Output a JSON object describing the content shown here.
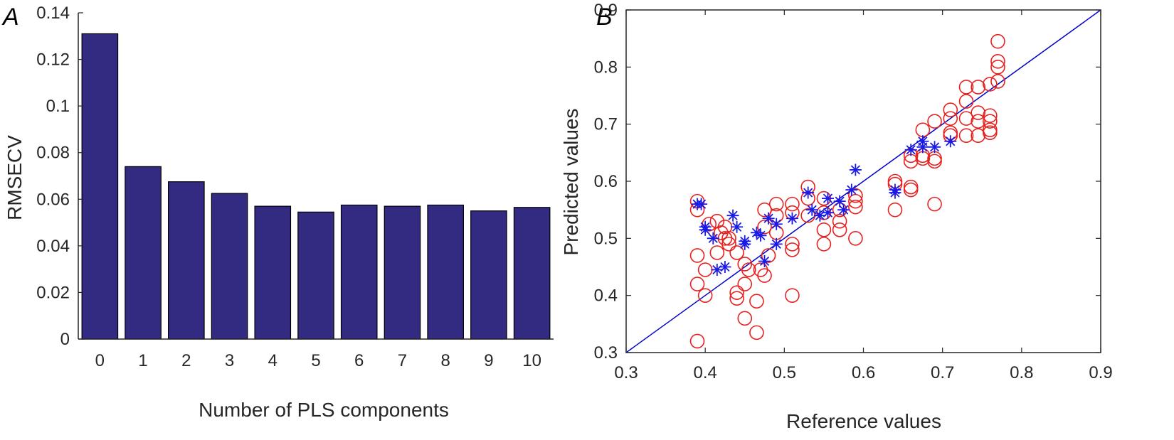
{
  "chart_data": [
    {
      "type": "bar",
      "panel_label": "A",
      "categories": [
        "0",
        "1",
        "2",
        "3",
        "4",
        "5",
        "6",
        "7",
        "8",
        "9",
        "10"
      ],
      "values": [
        0.131,
        0.074,
        0.0675,
        0.0625,
        0.057,
        0.0545,
        0.0575,
        0.057,
        0.0575,
        0.055,
        0.0565
      ],
      "xlabel": "Number of PLS components",
      "ylabel": "RMSECV",
      "ylim": [
        0,
        0.14
      ],
      "yticks": [
        "0",
        "0.02",
        "0.04",
        "0.06",
        "0.08",
        "0.1",
        "0.12",
        "0.14"
      ],
      "bar_color": "#332A82",
      "grid": false
    },
    {
      "type": "scatter",
      "panel_label": "B",
      "xlabel": "Reference values",
      "ylabel": "Predicted values",
      "xlim": [
        0.3,
        0.9
      ],
      "ylim": [
        0.3,
        0.9
      ],
      "xticks": [
        "0.3",
        "0.4",
        "0.5",
        "0.6",
        "0.7",
        "0.8",
        "0.9"
      ],
      "yticks": [
        "0.3",
        "0.4",
        "0.5",
        "0.6",
        "0.7",
        "0.8",
        "0.9"
      ],
      "grid": false,
      "reference_line": {
        "from": [
          0.3,
          0.3
        ],
        "to": [
          0.9,
          0.9
        ],
        "color": "#0000CC"
      },
      "series": [
        {
          "marker": "circle",
          "color": "#E8201E",
          "points": [
            [
              0.39,
              0.565
            ],
            [
              0.39,
              0.55
            ],
            [
              0.39,
              0.47
            ],
            [
              0.39,
              0.42
            ],
            [
              0.39,
              0.32
            ],
            [
              0.4,
              0.445
            ],
            [
              0.4,
              0.4
            ],
            [
              0.405,
              0.525
            ],
            [
              0.415,
              0.475
            ],
            [
              0.415,
              0.53
            ],
            [
              0.42,
              0.51
            ],
            [
              0.425,
              0.5
            ],
            [
              0.425,
              0.52
            ],
            [
              0.43,
              0.5
            ],
            [
              0.43,
              0.49
            ],
            [
              0.44,
              0.475
            ],
            [
              0.44,
              0.405
            ],
            [
              0.44,
              0.395
            ],
            [
              0.45,
              0.42
            ],
            [
              0.45,
              0.455
            ],
            [
              0.45,
              0.36
            ],
            [
              0.455,
              0.445
            ],
            [
              0.465,
              0.335
            ],
            [
              0.465,
              0.39
            ],
            [
              0.47,
              0.445
            ],
            [
              0.475,
              0.435
            ],
            [
              0.475,
              0.52
            ],
            [
              0.475,
              0.55
            ],
            [
              0.48,
              0.47
            ],
            [
              0.49,
              0.56
            ],
            [
              0.49,
              0.54
            ],
            [
              0.49,
              0.51
            ],
            [
              0.51,
              0.56
            ],
            [
              0.51,
              0.545
            ],
            [
              0.51,
              0.49
            ],
            [
              0.51,
              0.48
            ],
            [
              0.51,
              0.4
            ],
            [
              0.53,
              0.59
            ],
            [
              0.53,
              0.57
            ],
            [
              0.53,
              0.54
            ],
            [
              0.55,
              0.57
            ],
            [
              0.55,
              0.545
            ],
            [
              0.55,
              0.515
            ],
            [
              0.55,
              0.49
            ],
            [
              0.57,
              0.55
            ],
            [
              0.57,
              0.53
            ],
            [
              0.57,
              0.515
            ],
            [
              0.59,
              0.575
            ],
            [
              0.59,
              0.565
            ],
            [
              0.59,
              0.555
            ],
            [
              0.59,
              0.5
            ],
            [
              0.64,
              0.6
            ],
            [
              0.64,
              0.595
            ],
            [
              0.64,
              0.55
            ],
            [
              0.66,
              0.645
            ],
            [
              0.66,
              0.635
            ],
            [
              0.66,
              0.59
            ],
            [
              0.66,
              0.585
            ],
            [
              0.675,
              0.69
            ],
            [
              0.675,
              0.645
            ],
            [
              0.675,
              0.64
            ],
            [
              0.69,
              0.705
            ],
            [
              0.69,
              0.64
            ],
            [
              0.69,
              0.635
            ],
            [
              0.69,
              0.56
            ],
            [
              0.71,
              0.725
            ],
            [
              0.71,
              0.71
            ],
            [
              0.71,
              0.685
            ],
            [
              0.71,
              0.68
            ],
            [
              0.73,
              0.765
            ],
            [
              0.73,
              0.74
            ],
            [
              0.73,
              0.71
            ],
            [
              0.73,
              0.68
            ],
            [
              0.745,
              0.765
            ],
            [
              0.745,
              0.72
            ],
            [
              0.745,
              0.705
            ],
            [
              0.745,
              0.68
            ],
            [
              0.76,
              0.77
            ],
            [
              0.76,
              0.715
            ],
            [
              0.76,
              0.705
            ],
            [
              0.76,
              0.69
            ],
            [
              0.76,
              0.685
            ],
            [
              0.77,
              0.845
            ],
            [
              0.77,
              0.81
            ],
            [
              0.77,
              0.8
            ],
            [
              0.77,
              0.775
            ]
          ]
        },
        {
          "marker": "asterisk",
          "color": "#1A1AE6",
          "points": [
            [
              0.39,
              0.56
            ],
            [
              0.395,
              0.56
            ],
            [
              0.4,
              0.52
            ],
            [
              0.4,
              0.515
            ],
            [
              0.41,
              0.5
            ],
            [
              0.415,
              0.445
            ],
            [
              0.425,
              0.45
            ],
            [
              0.435,
              0.54
            ],
            [
              0.44,
              0.52
            ],
            [
              0.45,
              0.49
            ],
            [
              0.45,
              0.495
            ],
            [
              0.465,
              0.51
            ],
            [
              0.47,
              0.505
            ],
            [
              0.475,
              0.46
            ],
            [
              0.48,
              0.535
            ],
            [
              0.49,
              0.49
            ],
            [
              0.49,
              0.525
            ],
            [
              0.51,
              0.535
            ],
            [
              0.53,
              0.58
            ],
            [
              0.535,
              0.55
            ],
            [
              0.545,
              0.54
            ],
            [
              0.555,
              0.545
            ],
            [
              0.555,
              0.57
            ],
            [
              0.57,
              0.565
            ],
            [
              0.575,
              0.55
            ],
            [
              0.585,
              0.585
            ],
            [
              0.59,
              0.62
            ],
            [
              0.64,
              0.58
            ],
            [
              0.64,
              0.585
            ],
            [
              0.66,
              0.655
            ],
            [
              0.675,
              0.66
            ],
            [
              0.675,
              0.67
            ],
            [
              0.69,
              0.66
            ],
            [
              0.71,
              0.67
            ]
          ]
        }
      ]
    }
  ]
}
